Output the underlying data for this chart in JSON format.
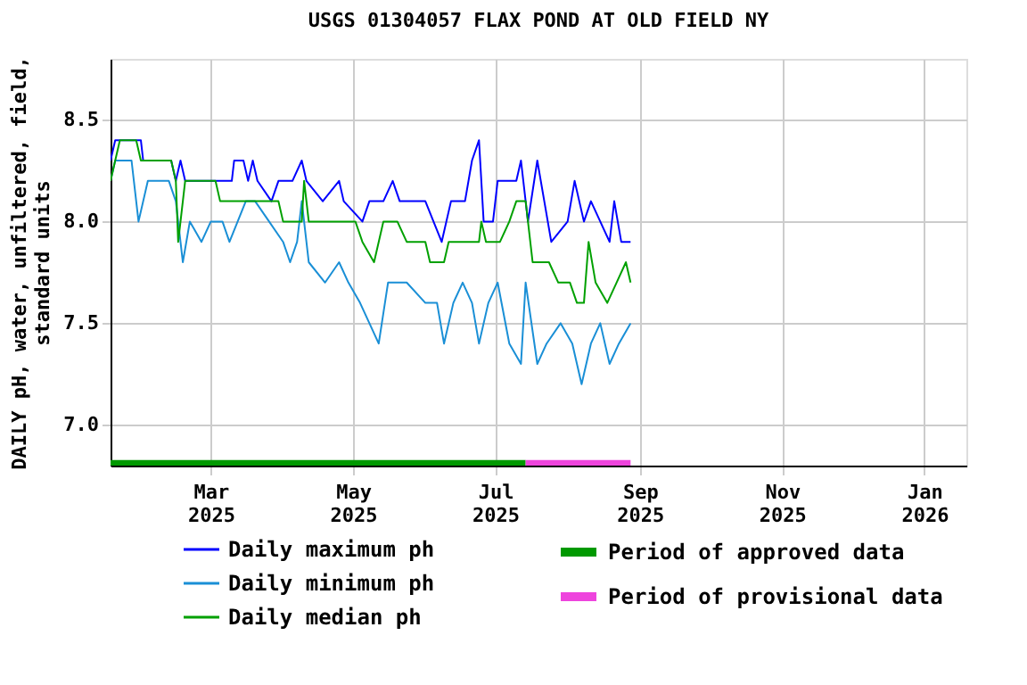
{
  "chart_data": {
    "type": "line",
    "title": "USGS 01304057 FLAX POND AT OLD FIELD NY",
    "ylabel": "DAILY pH, water, unfiltered, field,\nstandard units",
    "xlim": [
      "2025-01-17",
      "2026-01-19"
    ],
    "xticks": [
      {
        "value": "2025-03-01",
        "label": "Mar\n2025"
      },
      {
        "value": "2025-05-01",
        "label": "May\n2025"
      },
      {
        "value": "2025-07-01",
        "label": "Jul\n2025"
      },
      {
        "value": "2025-09-01",
        "label": "Sep\n2025"
      },
      {
        "value": "2025-11-01",
        "label": "Nov\n2025"
      },
      {
        "value": "2026-01-01",
        "label": "Jan\n2026"
      }
    ],
    "ylim": [
      6.8,
      8.8
    ],
    "yticks": [
      {
        "value": 7.0,
        "label": "7.0"
      },
      {
        "value": 7.5,
        "label": "7.5"
      },
      {
        "value": 8.0,
        "label": "8.0"
      },
      {
        "value": 8.5,
        "label": "8.5"
      }
    ],
    "grid": true,
    "legend": "bottom",
    "line_style": "solid",
    "marker": "none",
    "series": [
      {
        "name": "Daily maximum ph",
        "color": "#0000ff",
        "x": [
          "2025-01-17",
          "2025-01-19",
          "2025-01-30",
          "2025-01-31",
          "2025-02-12",
          "2025-02-14",
          "2025-02-16",
          "2025-02-18",
          "2025-03-10",
          "2025-03-11",
          "2025-03-15",
          "2025-03-17",
          "2025-03-19",
          "2025-03-21",
          "2025-03-27",
          "2025-03-30",
          "2025-04-05",
          "2025-04-09",
          "2025-04-11",
          "2025-04-18",
          "2025-04-25",
          "2025-04-27",
          "2025-05-05",
          "2025-05-08",
          "2025-05-14",
          "2025-05-18",
          "2025-05-21",
          "2025-06-01",
          "2025-06-08",
          "2025-06-12",
          "2025-06-18",
          "2025-06-21",
          "2025-06-24",
          "2025-06-26",
          "2025-06-30",
          "2025-07-02",
          "2025-07-10",
          "2025-07-12",
          "2025-07-15",
          "2025-07-19",
          "2025-07-22",
          "2025-07-25",
          "2025-08-01",
          "2025-08-04",
          "2025-08-08",
          "2025-08-11",
          "2025-08-15",
          "2025-08-19",
          "2025-08-21",
          "2025-08-24",
          "2025-08-28"
        ],
        "values": [
          8.3,
          8.4,
          8.4,
          8.3,
          8.3,
          8.2,
          8.3,
          8.2,
          8.2,
          8.3,
          8.3,
          8.2,
          8.3,
          8.2,
          8.1,
          8.2,
          8.2,
          8.3,
          8.2,
          8.1,
          8.2,
          8.1,
          8.0,
          8.1,
          8.1,
          8.2,
          8.1,
          8.1,
          7.9,
          8.1,
          8.1,
          8.3,
          8.4,
          8.0,
          8.0,
          8.2,
          8.2,
          8.3,
          8.0,
          8.3,
          8.1,
          7.9,
          8.0,
          8.2,
          8.0,
          8.1,
          8.0,
          7.9,
          8.1,
          7.9,
          7.9
        ]
      },
      {
        "name": "Daily minimum ph",
        "color": "#1a8fd6",
        "x": [
          "2025-01-17",
          "2025-01-19",
          "2025-01-26",
          "2025-01-29",
          "2025-02-02",
          "2025-02-11",
          "2025-02-14",
          "2025-02-17",
          "2025-02-20",
          "2025-02-25",
          "2025-03-01",
          "2025-03-06",
          "2025-03-09",
          "2025-03-16",
          "2025-03-20",
          "2025-03-26",
          "2025-04-01",
          "2025-04-04",
          "2025-04-07",
          "2025-04-09",
          "2025-04-12",
          "2025-04-19",
          "2025-04-25",
          "2025-04-29",
          "2025-05-04",
          "2025-05-08",
          "2025-05-12",
          "2025-05-16",
          "2025-05-24",
          "2025-06-01",
          "2025-06-06",
          "2025-06-09",
          "2025-06-13",
          "2025-06-17",
          "2025-06-21",
          "2025-06-24",
          "2025-06-28",
          "2025-07-02",
          "2025-07-07",
          "2025-07-12",
          "2025-07-14",
          "2025-07-19",
          "2025-07-23",
          "2025-07-29",
          "2025-08-03",
          "2025-08-07",
          "2025-08-11",
          "2025-08-15",
          "2025-08-19",
          "2025-08-23",
          "2025-08-28"
        ],
        "values": [
          8.2,
          8.3,
          8.3,
          8.0,
          8.2,
          8.2,
          8.1,
          7.8,
          8.0,
          7.9,
          8.0,
          8.0,
          7.9,
          8.1,
          8.1,
          8.0,
          7.9,
          7.8,
          7.9,
          8.1,
          7.8,
          7.7,
          7.8,
          7.7,
          7.6,
          7.5,
          7.4,
          7.7,
          7.7,
          7.6,
          7.6,
          7.4,
          7.6,
          7.7,
          7.6,
          7.4,
          7.6,
          7.7,
          7.4,
          7.3,
          7.7,
          7.3,
          7.4,
          7.5,
          7.4,
          7.2,
          7.4,
          7.5,
          7.3,
          7.4,
          7.5
        ]
      },
      {
        "name": "Daily median ph",
        "color": "#00a000",
        "x": [
          "2025-01-17",
          "2025-01-19",
          "2025-01-21",
          "2025-01-28",
          "2025-01-30",
          "2025-02-12",
          "2025-02-14",
          "2025-02-15",
          "2025-02-18",
          "2025-03-03",
          "2025-03-05",
          "2025-03-30",
          "2025-04-01",
          "2025-04-09",
          "2025-04-10",
          "2025-04-12",
          "2025-05-02",
          "2025-05-05",
          "2025-05-10",
          "2025-05-14",
          "2025-05-20",
          "2025-05-24",
          "2025-06-01",
          "2025-06-03",
          "2025-06-09",
          "2025-06-11",
          "2025-06-24",
          "2025-06-25",
          "2025-06-27",
          "2025-07-03",
          "2025-07-07",
          "2025-07-10",
          "2025-07-14",
          "2025-07-17",
          "2025-07-24",
          "2025-07-28",
          "2025-08-02",
          "2025-08-05",
          "2025-08-08",
          "2025-08-10",
          "2025-08-13",
          "2025-08-18",
          "2025-08-22",
          "2025-08-26",
          "2025-08-28"
        ],
        "values": [
          8.2,
          8.3,
          8.4,
          8.4,
          8.3,
          8.3,
          8.2,
          7.9,
          8.2,
          8.2,
          8.1,
          8.1,
          8.0,
          8.0,
          8.2,
          8.0,
          8.0,
          7.9,
          7.8,
          8.0,
          8.0,
          7.9,
          7.9,
          7.8,
          7.8,
          7.9,
          7.9,
          8.0,
          7.9,
          7.9,
          8.0,
          8.1,
          8.1,
          7.8,
          7.8,
          7.7,
          7.7,
          7.6,
          7.6,
          7.9,
          7.7,
          7.6,
          7.7,
          7.8,
          7.7
        ]
      },
      {
        "name": "Period of approved data",
        "color": "#009900",
        "x": [
          "2025-01-17",
          "2025-07-14"
        ],
        "values": [
          6.81,
          6.81
        ]
      },
      {
        "name": "Period of provisional data",
        "color": "#ee44dd",
        "x": [
          "2025-07-14",
          "2025-08-28"
        ],
        "values": [
          6.81,
          6.81
        ]
      }
    ]
  }
}
